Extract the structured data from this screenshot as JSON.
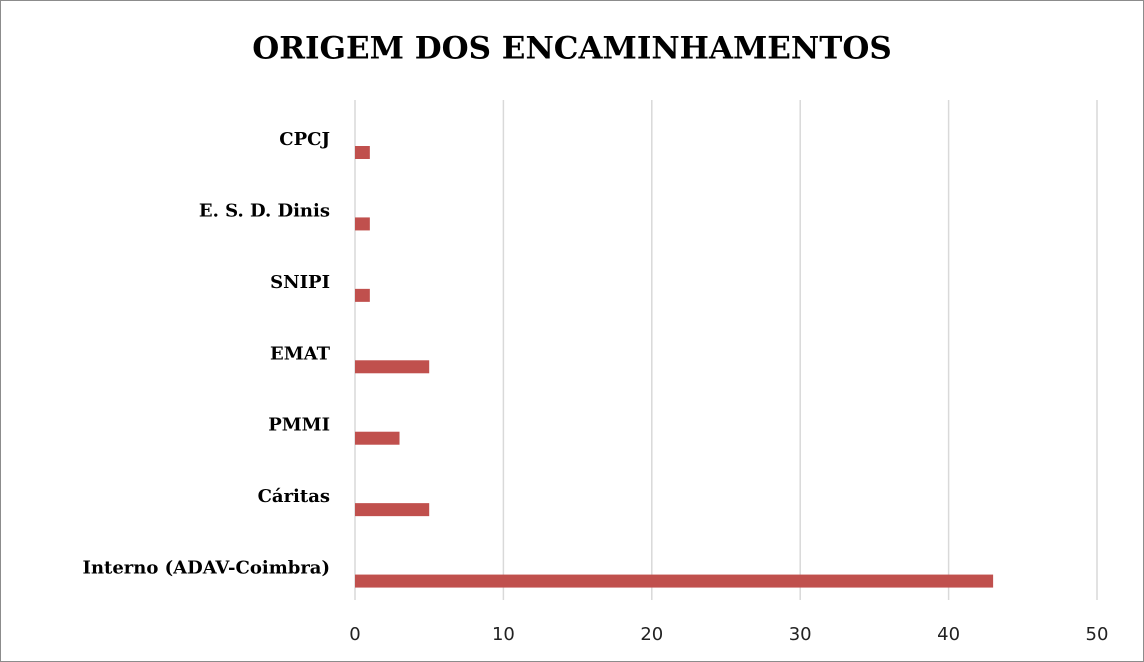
{
  "chart_data": {
    "type": "bar",
    "orientation": "horizontal",
    "title": "ORIGEM DOS ENCAMINHAMENTOS",
    "categories": [
      "CPCJ",
      "E. S. D. Dinis",
      "SNIPI",
      "EMAT",
      "PMMI",
      "Cáritas",
      "Interno (ADAV-Coimbra)"
    ],
    "values": [
      1,
      1,
      1,
      5,
      3,
      5,
      43
    ],
    "color": "#c0504d",
    "xlim": [
      0,
      50
    ],
    "xticks": [
      0,
      10,
      20,
      30,
      40,
      50
    ],
    "grid": true
  }
}
